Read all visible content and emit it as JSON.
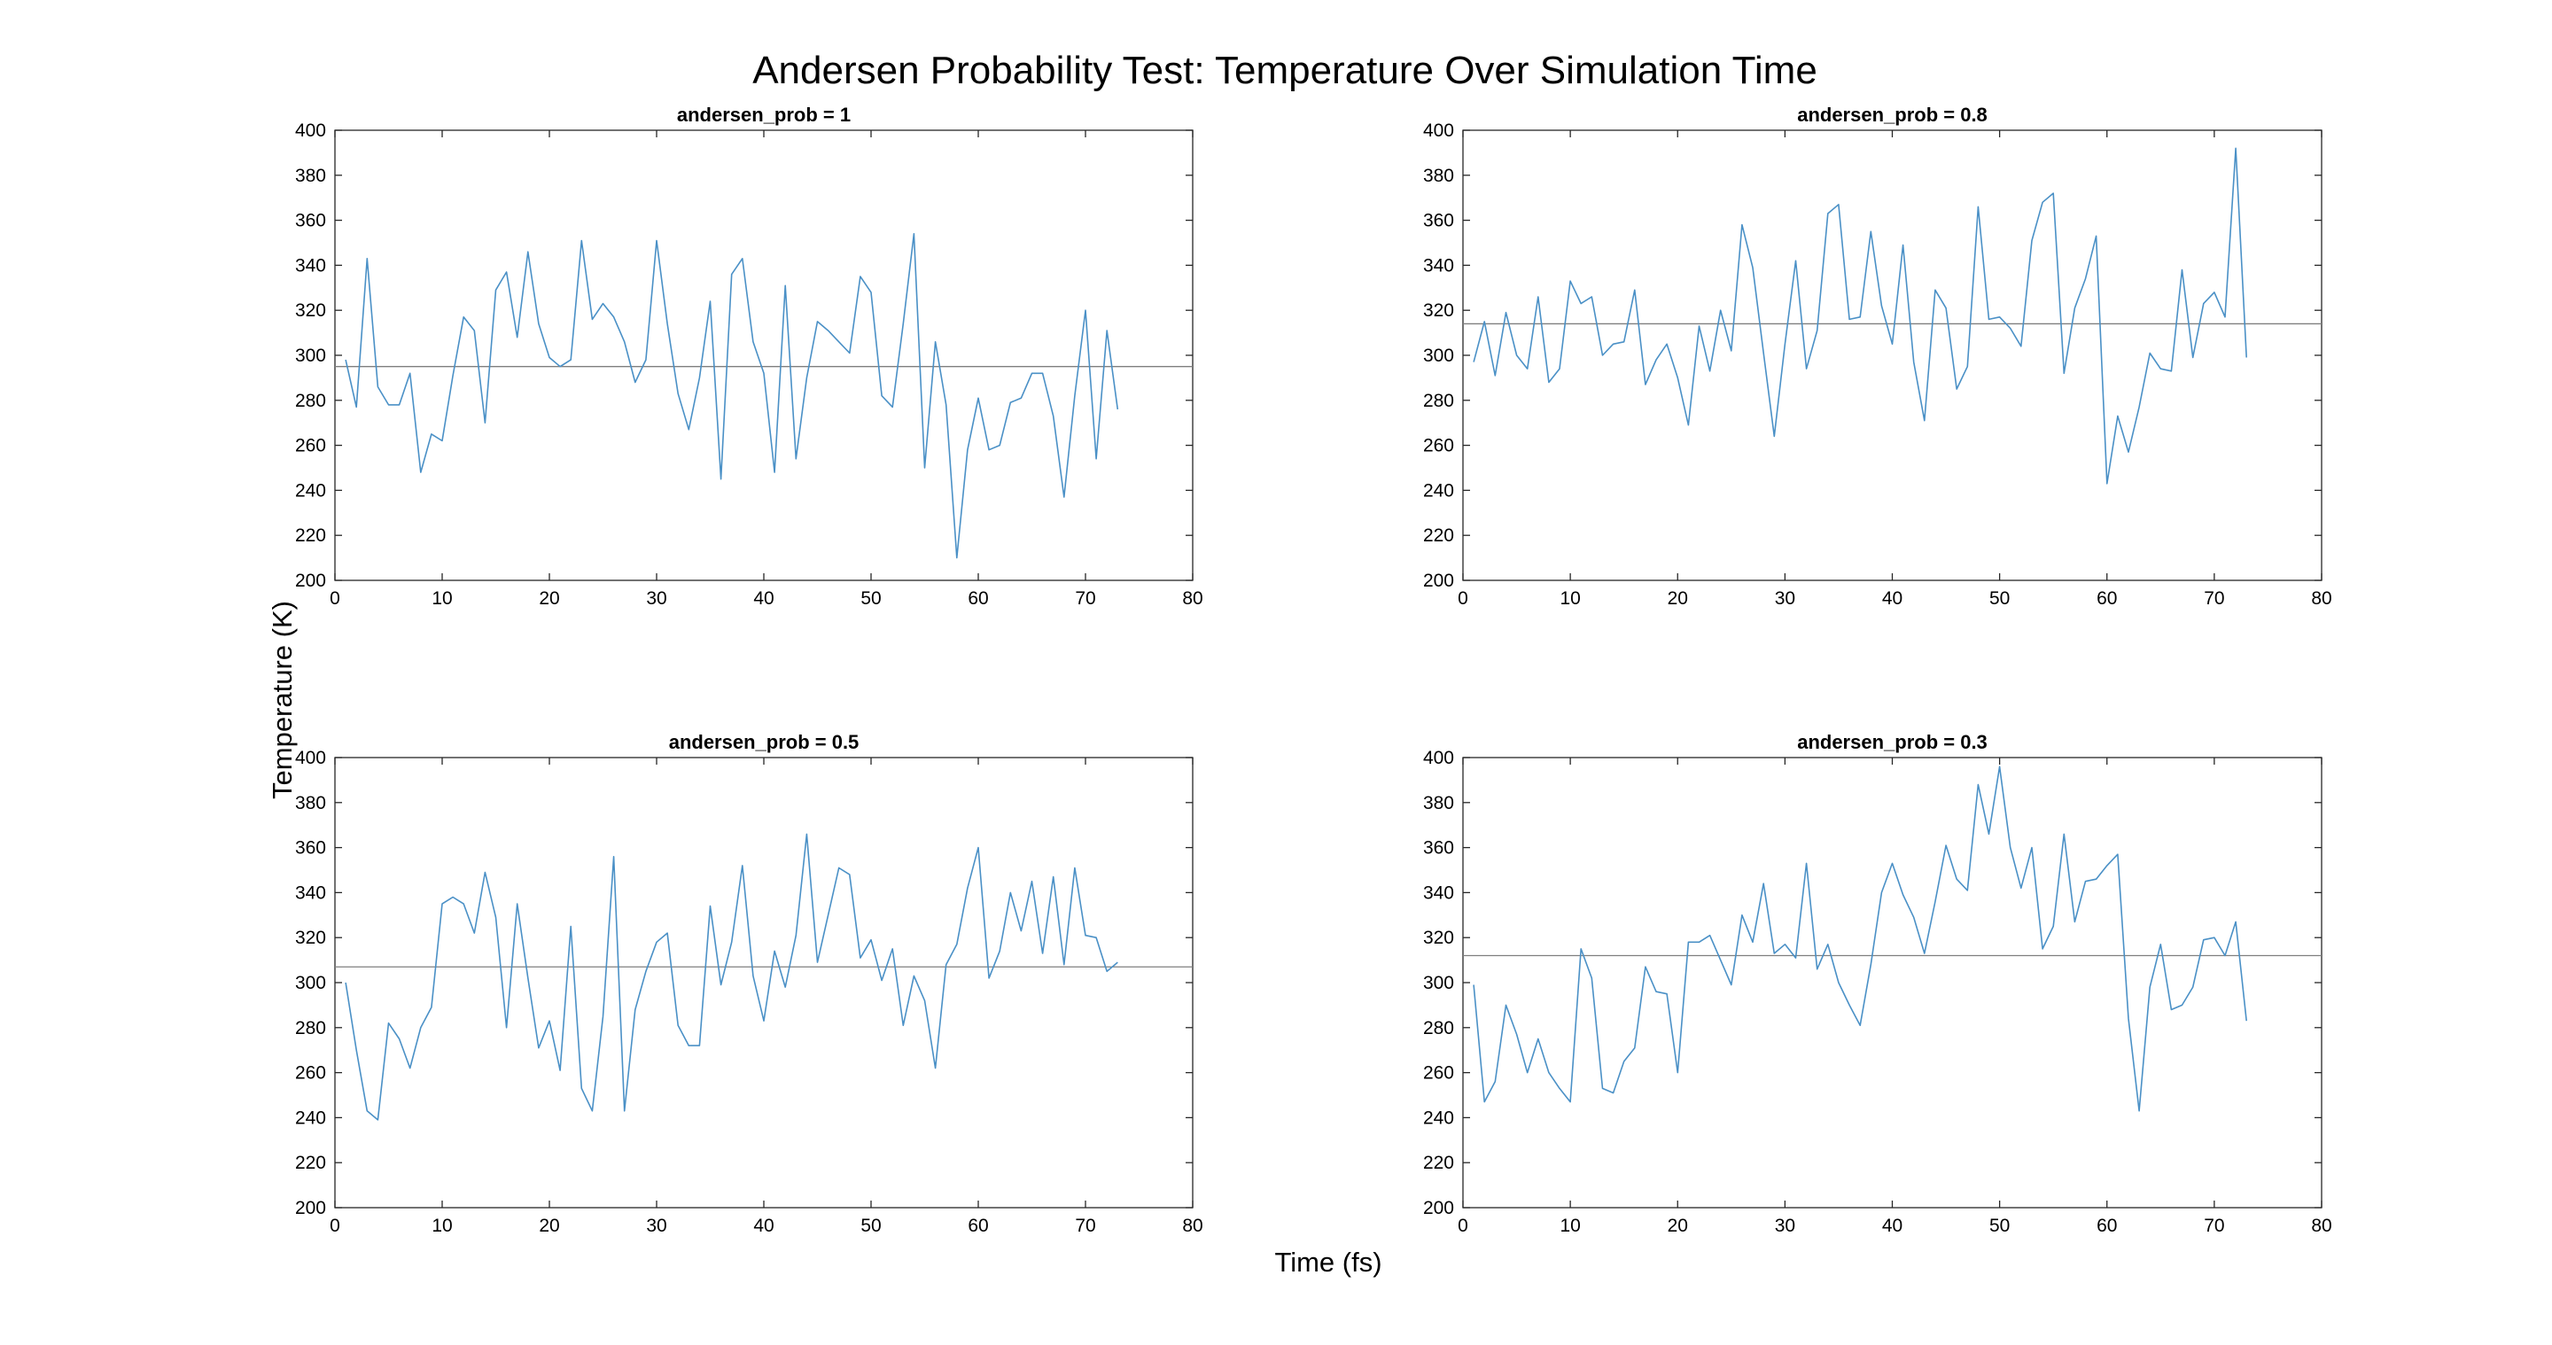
{
  "chart_data": {
    "title": "Andersen Probability Test: Temperature Over Simulation Time",
    "xlabel": "Time (fs)",
    "ylabel": "Temperature (K)",
    "colors": {
      "series": "#4A90C6",
      "reference": "#7F7F7F",
      "axes": "#262626"
    },
    "subplots": [
      {
        "type": "line",
        "title": "andersen_prob = 1",
        "xlim": [
          0,
          80
        ],
        "ylim": [
          200,
          400
        ],
        "xticks": [
          0,
          10,
          20,
          30,
          40,
          50,
          60,
          70,
          80
        ],
        "yticks": [
          200,
          220,
          240,
          260,
          280,
          300,
          320,
          340,
          360,
          380,
          400
        ],
        "grid": false,
        "reference_line": 295,
        "x_start": 1,
        "values": [
          298,
          277,
          343,
          286,
          278,
          278,
          292,
          248,
          265,
          262,
          291,
          317,
          311,
          270,
          329,
          337,
          308,
          346,
          314,
          299,
          295,
          298,
          351,
          316,
          323,
          317,
          306,
          288,
          298,
          351,
          314,
          283,
          267,
          290,
          324,
          245,
          336,
          343,
          306,
          292,
          248,
          331,
          254,
          290,
          315,
          311,
          306,
          301,
          335,
          328,
          282,
          277,
          314,
          354,
          250,
          306,
          278,
          210,
          258,
          281,
          258,
          260,
          279,
          281,
          292,
          292,
          273,
          237,
          282,
          320,
          254,
          311,
          276
        ]
      },
      {
        "type": "line",
        "title": "andersen_prob = 0.8",
        "xlim": [
          0,
          80
        ],
        "ylim": [
          200,
          400
        ],
        "xticks": [
          0,
          10,
          20,
          30,
          40,
          50,
          60,
          70,
          80
        ],
        "yticks": [
          200,
          220,
          240,
          260,
          280,
          300,
          320,
          340,
          360,
          380,
          400
        ],
        "grid": false,
        "reference_line": 314,
        "x_start": 1,
        "values": [
          297,
          315,
          291,
          319,
          300,
          294,
          326,
          288,
          294,
          333,
          323,
          326,
          300,
          305,
          306,
          329,
          287,
          298,
          305,
          290,
          269,
          313,
          293,
          320,
          302,
          358,
          339,
          301,
          264,
          305,
          342,
          294,
          311,
          363,
          367,
          316,
          317,
          355,
          322,
          305,
          349,
          297,
          271,
          329,
          321,
          285,
          295,
          366,
          316,
          317,
          312,
          304,
          351,
          368,
          372,
          292,
          321,
          334,
          353,
          243,
          273,
          257,
          277,
          301,
          294,
          293,
          338,
          299,
          323,
          328,
          317,
          392,
          299
        ]
      },
      {
        "type": "line",
        "title": "andersen_prob = 0.5",
        "xlim": [
          0,
          80
        ],
        "ylim": [
          200,
          400
        ],
        "xticks": [
          0,
          10,
          20,
          30,
          40,
          50,
          60,
          70,
          80
        ],
        "yticks": [
          200,
          220,
          240,
          260,
          280,
          300,
          320,
          340,
          360,
          380,
          400
        ],
        "grid": false,
        "reference_line": 307,
        "x_start": 1,
        "values": [
          300,
          270,
          243,
          239,
          282,
          275,
          262,
          280,
          289,
          335,
          338,
          335,
          322,
          349,
          329,
          280,
          335,
          302,
          271,
          283,
          261,
          325,
          253,
          243,
          285,
          356,
          243,
          288,
          305,
          318,
          322,
          281,
          272,
          272,
          334,
          299,
          318,
          352,
          303,
          283,
          314,
          298,
          321,
          366,
          309,
          330,
          351,
          348,
          311,
          319,
          301,
          315,
          281,
          303,
          292,
          262,
          308,
          317,
          342,
          360,
          302,
          314,
          340,
          323,
          345,
          313,
          347,
          308,
          351,
          321,
          320,
          305,
          309
        ]
      },
      {
        "type": "line",
        "title": "andersen_prob = 0.3",
        "xlim": [
          0,
          80
        ],
        "ylim": [
          200,
          400
        ],
        "xticks": [
          0,
          10,
          20,
          30,
          40,
          50,
          60,
          70,
          80
        ],
        "yticks": [
          200,
          220,
          240,
          260,
          280,
          300,
          320,
          340,
          360,
          380,
          400
        ],
        "grid": false,
        "reference_line": 312,
        "x_start": 1,
        "values": [
          299,
          247,
          256,
          290,
          277,
          260,
          275,
          260,
          253,
          247,
          315,
          302,
          253,
          251,
          265,
          271,
          307,
          296,
          295,
          260,
          318,
          318,
          321,
          310,
          299,
          330,
          318,
          344,
          313,
          317,
          311,
          353,
          306,
          317,
          300,
          290,
          281,
          308,
          340,
          353,
          339,
          329,
          313,
          336,
          361,
          346,
          341,
          388,
          366,
          396,
          360,
          342,
          360,
          315,
          325,
          366,
          327,
          345,
          346,
          352,
          357,
          284,
          243,
          298,
          317,
          288,
          290,
          298,
          319,
          320,
          312,
          327,
          283
        ]
      }
    ]
  }
}
